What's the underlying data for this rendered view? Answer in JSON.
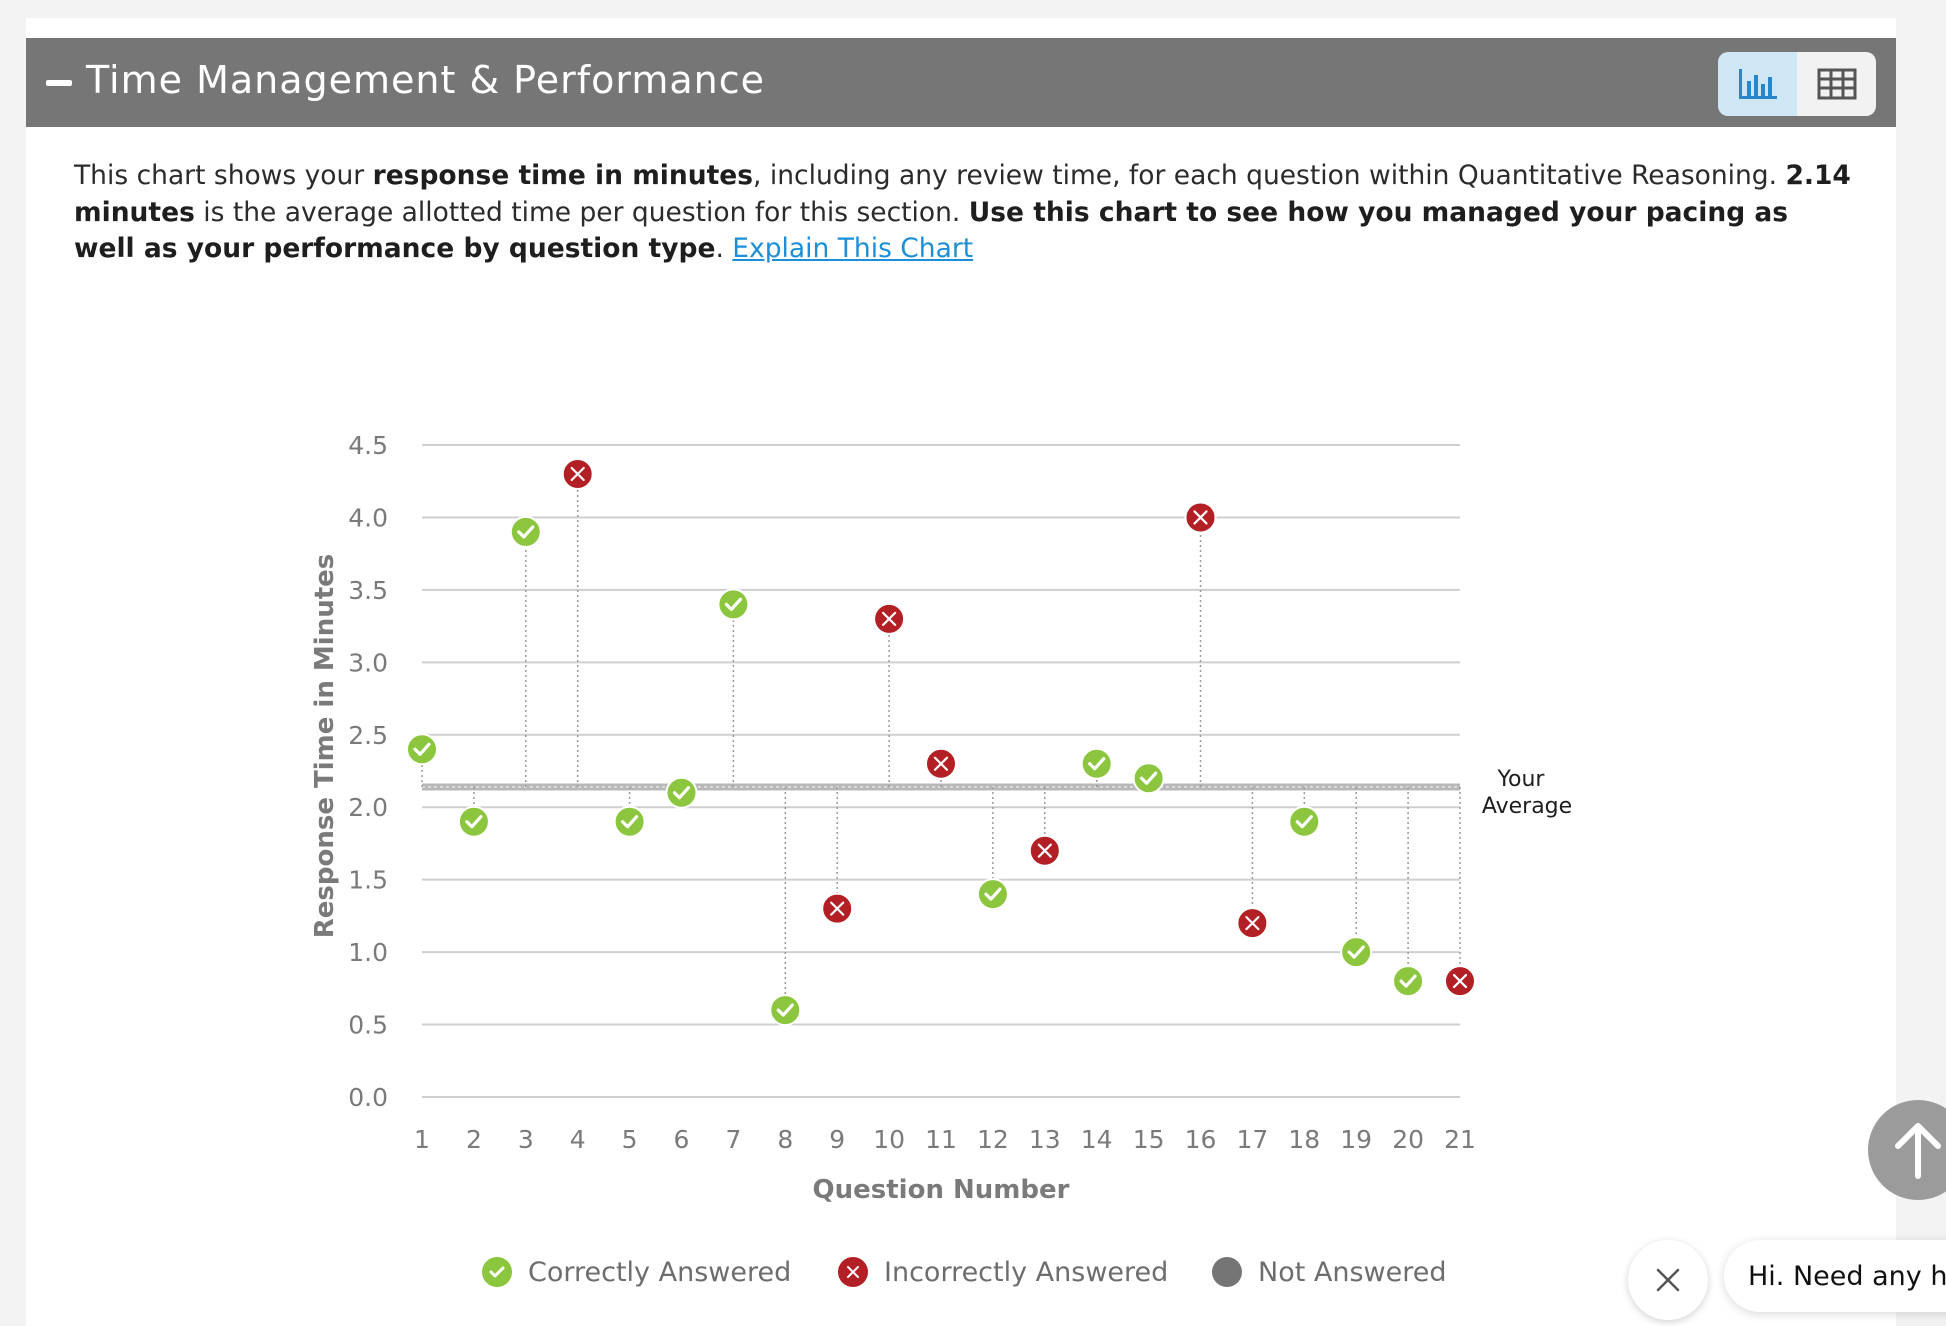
{
  "header": {
    "title": "Time Management & Performance",
    "chart_view_icon": "bar-chart-icon",
    "table_view_icon": "table-icon"
  },
  "description": {
    "p1": "This chart shows your ",
    "b1": "response time in minutes",
    "p2": ", including any review time, for each question within Quantitative Reasoning. ",
    "b2": "2.14 minutes",
    "p3": " is the average allotted time per question for this section. ",
    "b3": "Use this chart to see how you managed your pacing as well as your performance by question type",
    "p4": ". ",
    "link": "Explain This Chart"
  },
  "chart_data": {
    "type": "scatter",
    "title": "",
    "xlabel": "Question Number",
    "ylabel": "Response Time in Minutes",
    "ylim": [
      0,
      4.5
    ],
    "y_ticks": [
      "0.0",
      "0.5",
      "1.0",
      "1.5",
      "2.0",
      "2.5",
      "3.0",
      "3.5",
      "4.0",
      "4.5"
    ],
    "categories": [
      "1",
      "2",
      "3",
      "4",
      "5",
      "6",
      "7",
      "8",
      "9",
      "10",
      "11",
      "12",
      "13",
      "14",
      "15",
      "16",
      "17",
      "18",
      "19",
      "20",
      "21"
    ],
    "values": [
      2.4,
      1.9,
      3.9,
      4.3,
      1.9,
      2.1,
      3.4,
      0.6,
      1.3,
      3.3,
      2.3,
      1.4,
      1.7,
      2.3,
      2.2,
      4.0,
      1.2,
      1.9,
      1.0,
      0.8,
      0.8
    ],
    "status": [
      "correct",
      "correct",
      "correct",
      "incorrect",
      "correct",
      "correct",
      "correct",
      "correct",
      "incorrect",
      "incorrect",
      "incorrect",
      "correct",
      "incorrect",
      "correct",
      "correct",
      "incorrect",
      "incorrect",
      "correct",
      "correct",
      "correct",
      "incorrect"
    ],
    "average": 2.14,
    "average_label_line1": "Your",
    "average_label_line2": "Average",
    "grid": true,
    "legend": [
      {
        "key": "correct",
        "label": "Correctly Answered"
      },
      {
        "key": "incorrect",
        "label": "Incorrectly Answered"
      },
      {
        "key": "unanswered",
        "label": "Not Answered"
      }
    ]
  },
  "colors": {
    "correct": "#8cc63f",
    "incorrect": "#b21f24",
    "unanswered": "#757575",
    "average_line": "#b8b8b8",
    "grid": "#cfcfcf"
  },
  "chat": {
    "message": "Hi. Need any he"
  }
}
